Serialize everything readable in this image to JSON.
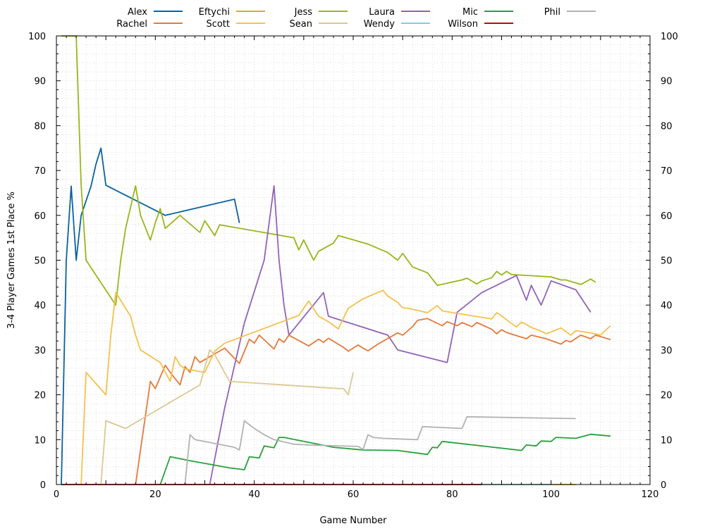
{
  "chart_data": {
    "type": "line",
    "xlabel": "Game Number",
    "ylabel": "3-4 Player Games 1st Place %",
    "xlim": [
      0,
      120
    ],
    "ylim": [
      0,
      100
    ],
    "x_ticks": [
      0,
      20,
      40,
      60,
      80,
      100,
      120
    ],
    "y_ticks": [
      0,
      10,
      20,
      30,
      40,
      50,
      60,
      70,
      80,
      90,
      100
    ],
    "grid": true,
    "legend_position": "top",
    "series": [
      {
        "name": "Alex",
        "color": "#0a62a0",
        "x": [
          1,
          2,
          3,
          4,
          5,
          7,
          8,
          9,
          10,
          22,
          36,
          37
        ],
        "y": [
          0,
          50,
          66.5,
          50,
          60,
          66.5,
          71.4,
          75,
          66.7,
          60,
          63.6,
          58.3
        ]
      },
      {
        "name": "Eftychi",
        "color": "#d4aa3c",
        "x": [
          1,
          105
        ],
        "y": [
          0,
          0
        ]
      },
      {
        "name": "Jess",
        "color": "#9ab51a",
        "x": [
          1,
          2,
          3,
          4,
          5,
          6,
          12,
          13,
          14,
          16,
          17,
          19,
          20,
          21,
          22,
          25,
          29,
          30,
          32,
          33,
          48,
          49,
          50,
          52,
          53,
          56,
          57,
          63,
          67,
          69,
          70,
          72,
          75,
          77,
          82,
          83,
          85,
          86,
          88,
          89,
          90,
          91,
          92,
          100,
          102,
          103,
          106,
          108,
          109
        ],
        "y": [
          100,
          100,
          100,
          100,
          66.7,
          50,
          40,
          50,
          57.1,
          66.6,
          60,
          54.5,
          58.3,
          61.5,
          57.1,
          60,
          56.2,
          58.8,
          55.5,
          57.9,
          55,
          52.3,
          54.5,
          50,
          52,
          53.8,
          55.5,
          53.6,
          51.7,
          50,
          51.5,
          48.5,
          47.2,
          44.4,
          45.6,
          46,
          44.7,
          45.4,
          46.1,
          47.5,
          46.7,
          47.5,
          46.8,
          46.3,
          45.6,
          45.6,
          44.6,
          45.8,
          45.1
        ]
      },
      {
        "name": "Laura",
        "color": "#9163b6",
        "x": [
          31,
          34,
          38,
          42,
          44,
          45,
          46,
          47,
          54,
          55,
          67,
          69,
          79,
          81,
          86,
          93,
          95,
          96,
          98,
          100,
          105,
          108
        ],
        "y": [
          0,
          17,
          36,
          50,
          66.6,
          50,
          40,
          33.3,
          42.8,
          37.5,
          33.3,
          30,
          27.2,
          38.4,
          42.8,
          46.6,
          41.1,
          44.4,
          40,
          45.4,
          43.4,
          38.4
        ]
      },
      {
        "name": "Mic",
        "color": "#28a03c",
        "x": [
          21,
          23,
          27,
          31,
          35,
          38,
          39,
          41,
          42,
          44,
          45,
          46,
          56,
          62,
          69,
          75,
          76,
          77,
          78,
          94,
          95,
          97,
          98,
          100,
          101,
          105,
          108,
          112
        ],
        "y": [
          0,
          6.2,
          5.3,
          4.5,
          3.7,
          3.3,
          6.2,
          5.9,
          8.6,
          8.2,
          10.5,
          10.5,
          8.3,
          7.7,
          7.6,
          6.7,
          8.3,
          8.2,
          9.6,
          7.6,
          8.8,
          8.6,
          9.7,
          9.6,
          10.5,
          10.3,
          11.2,
          10.8
        ]
      },
      {
        "name": "Phil",
        "color": "#b2b2b2",
        "x": [
          26,
          27,
          28,
          36,
          37,
          38,
          40,
          42,
          44,
          48,
          51,
          61,
          62,
          63,
          64,
          66,
          73,
          74,
          82,
          83,
          105
        ],
        "y": [
          0,
          11.1,
          10,
          8.3,
          7.7,
          14.2,
          12.5,
          11.1,
          10,
          9,
          8.8,
          8.5,
          7.8,
          11.1,
          10.5,
          10.3,
          10,
          12.9,
          12.5,
          15.1,
          14.7
        ]
      },
      {
        "name": "Rachel",
        "color": "#e6793b",
        "x": [
          16,
          19,
          20,
          22,
          23,
          25,
          26,
          27,
          28,
          29,
          34,
          37,
          39,
          40,
          41,
          44,
          45,
          46,
          47,
          51,
          53,
          54,
          55,
          58,
          59,
          61,
          62,
          63,
          65,
          69,
          70,
          72,
          73,
          75,
          78,
          79,
          81,
          82,
          84,
          85,
          88,
          89,
          90,
          91,
          95,
          96,
          99,
          102,
          103,
          104,
          106,
          108,
          109,
          112
        ],
        "y": [
          0,
          23,
          21.4,
          26.6,
          25,
          22.2,
          26.3,
          25,
          28.5,
          27.2,
          30.4,
          27,
          32.4,
          31.5,
          33.3,
          30.2,
          32.5,
          31.7,
          33.3,
          30.9,
          32.4,
          31.7,
          32.6,
          30.6,
          29.7,
          31.1,
          30.4,
          29.8,
          31.3,
          33.8,
          33.3,
          35.2,
          36.6,
          37,
          35.4,
          36.3,
          35.4,
          36.1,
          35.2,
          36.1,
          34.6,
          33.6,
          34.5,
          33.9,
          32.5,
          33.3,
          32.5,
          31.3,
          32.1,
          31.8,
          33.3,
          32.5,
          33.3,
          32.3
        ]
      },
      {
        "name": "Scott",
        "color": "#f5c14b",
        "x": [
          5,
          6,
          10,
          11,
          12,
          15,
          16,
          17,
          21,
          23,
          24,
          25,
          26,
          30,
          32,
          34,
          49,
          51,
          53,
          55,
          56,
          57,
          59,
          60,
          62,
          66,
          67,
          69,
          70,
          71,
          73,
          75,
          77,
          78,
          88,
          89,
          90,
          91,
          92,
          93,
          94,
          95,
          96,
          98,
          99,
          100,
          102,
          104,
          105,
          109,
          110,
          111,
          112
        ],
        "y": [
          0,
          25,
          20,
          33.3,
          42.8,
          37.5,
          33.3,
          30,
          27.2,
          23,
          28.5,
          26.6,
          25.8,
          25,
          29.7,
          31.5,
          37.7,
          40.9,
          37.5,
          36.3,
          35.5,
          34.7,
          39.3,
          40,
          41.4,
          43.3,
          42,
          40.6,
          39.4,
          39.3,
          38.8,
          38.3,
          39.9,
          38.7,
          36.9,
          38.3,
          37.6,
          36.7,
          35.9,
          35.1,
          36.2,
          35.7,
          35,
          34.2,
          33.6,
          34,
          34.9,
          33.3,
          34.3,
          33.6,
          33.3,
          34.4,
          35.4
        ]
      },
      {
        "name": "Sean",
        "color": "#dcc893",
        "x": [
          9,
          10,
          14,
          29,
          31,
          32,
          35,
          57,
          58,
          59,
          60
        ],
        "y": [
          0,
          14.2,
          12.5,
          22.2,
          30,
          29,
          23,
          21.4,
          21.4,
          20,
          25
        ]
      },
      {
        "name": "Wendy",
        "color": "#7fcde4",
        "x": [
          1,
          100
        ],
        "y": [
          0,
          0
        ]
      },
      {
        "name": "Wilson",
        "color": "#b80c0c",
        "x": [
          1,
          86
        ],
        "y": [
          0,
          0
        ]
      }
    ]
  }
}
